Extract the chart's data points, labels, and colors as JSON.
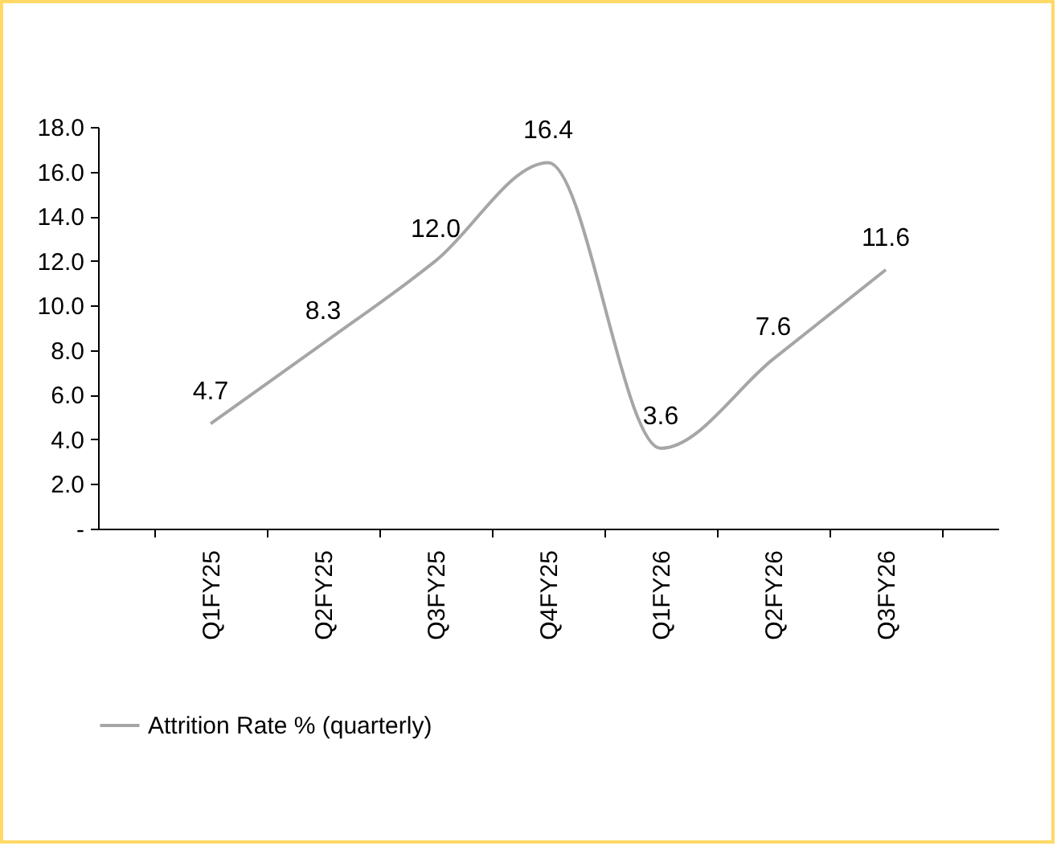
{
  "chart_data": {
    "type": "line",
    "categories": [
      "Q1FY25",
      "Q2FY25",
      "Q3FY25",
      "Q4FY25",
      "Q1FY26",
      "Q2FY26",
      "Q3FY26"
    ],
    "series": [
      {
        "name": "Attrition Rate % (quarterly)",
        "color": "#a6a6a6",
        "values": [
          4.7,
          8.3,
          12.0,
          16.4,
          3.6,
          7.6,
          11.6
        ],
        "value_labels": [
          "4.7",
          "8.3",
          "12.0",
          "16.4",
          "3.6",
          "7.6",
          "11.6"
        ]
      }
    ],
    "ylim": [
      0,
      18
    ],
    "yticks": [
      {
        "value": 0,
        "label": "-"
      },
      {
        "value": 2,
        "label": "2.0"
      },
      {
        "value": 4,
        "label": "4.0"
      },
      {
        "value": 6,
        "label": "6.0"
      },
      {
        "value": 8,
        "label": "8.0"
      },
      {
        "value": 10,
        "label": "10.0"
      },
      {
        "value": 12,
        "label": "12.0"
      },
      {
        "value": 14,
        "label": "14.0"
      },
      {
        "value": 16,
        "label": "16.0"
      },
      {
        "value": 18,
        "label": "18.0"
      }
    ],
    "grid": false,
    "legend": "bottom",
    "marker": "none",
    "line_style": "solid"
  }
}
